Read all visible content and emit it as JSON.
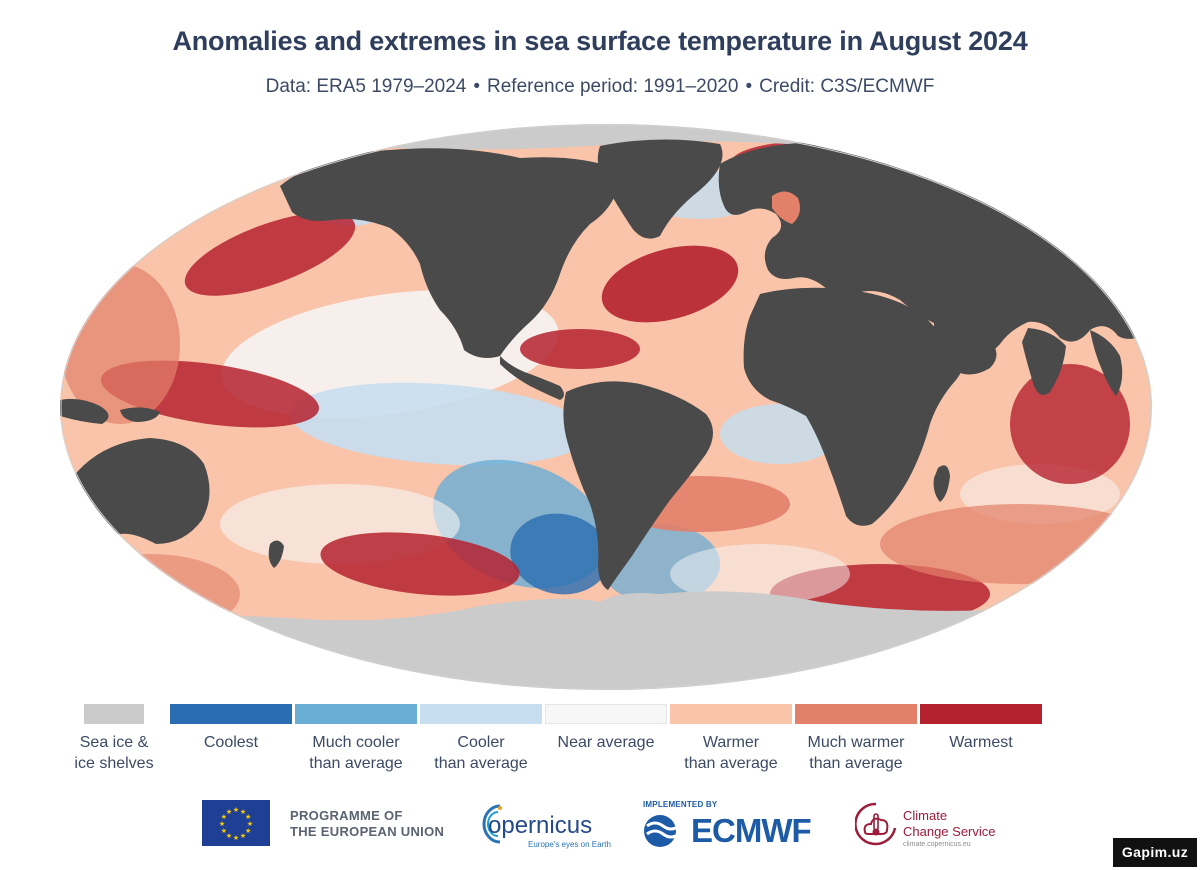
{
  "header": {
    "title": "Anomalies and extremes in sea surface temperature in August 2024",
    "subtitle_parts": [
      "Data: ERA5 1979–2024",
      "Reference period: 1991–2020",
      "Credit: C3S/ECMWF"
    ],
    "separator": "•"
  },
  "map": {
    "projection": "Robinson-style ellipse",
    "colors": {
      "land": "#4a4a4a",
      "ice": "#cbcbcb",
      "coolest": "#2a6db0",
      "much_cooler": "#6aaed6",
      "cooler": "#c6deef",
      "near_average": "#f7f7f7",
      "warmer": "#f9c4a9",
      "much_warmer": "#e2806a",
      "warmest": "#b5222f"
    }
  },
  "legend": {
    "items": [
      {
        "label_lines": [
          "Sea ice &",
          "ice shelves"
        ],
        "color": "#cbcbcb"
      },
      {
        "label_lines": [
          "Coolest"
        ],
        "color": "#2a6db0"
      },
      {
        "label_lines": [
          "Much cooler",
          "than average"
        ],
        "color": "#6aaed6"
      },
      {
        "label_lines": [
          "Cooler",
          "than average"
        ],
        "color": "#c6deef"
      },
      {
        "label_lines": [
          "Near average"
        ],
        "color": "#f7f7f7"
      },
      {
        "label_lines": [
          "Warmer",
          "than average"
        ],
        "color": "#f9c4a9"
      },
      {
        "label_lines": [
          "Much warmer",
          "than average"
        ],
        "color": "#e2806a"
      },
      {
        "label_lines": [
          "Warmest"
        ],
        "color": "#b5222f"
      }
    ]
  },
  "logos": {
    "eu": {
      "lines": [
        "PROGRAMME OF",
        "THE EUROPEAN UNION"
      ],
      "icon": "eu-flag-icon"
    },
    "copernicus": {
      "name": "opernicus",
      "tagline": "Europe's eyes on Earth",
      "icon": "copernicus-swirl-icon"
    },
    "ecmwf": {
      "implemented_by": "IMPLEMENTED BY",
      "name": "ECMWF",
      "icon": "ecmwf-wave-icon"
    },
    "c3s": {
      "lines": [
        "Climate",
        "Change Service"
      ],
      "url": "climate.copernicus.eu",
      "icon": "thermometer-cloud-icon"
    }
  },
  "watermark": {
    "text": "Gapim.uz"
  }
}
